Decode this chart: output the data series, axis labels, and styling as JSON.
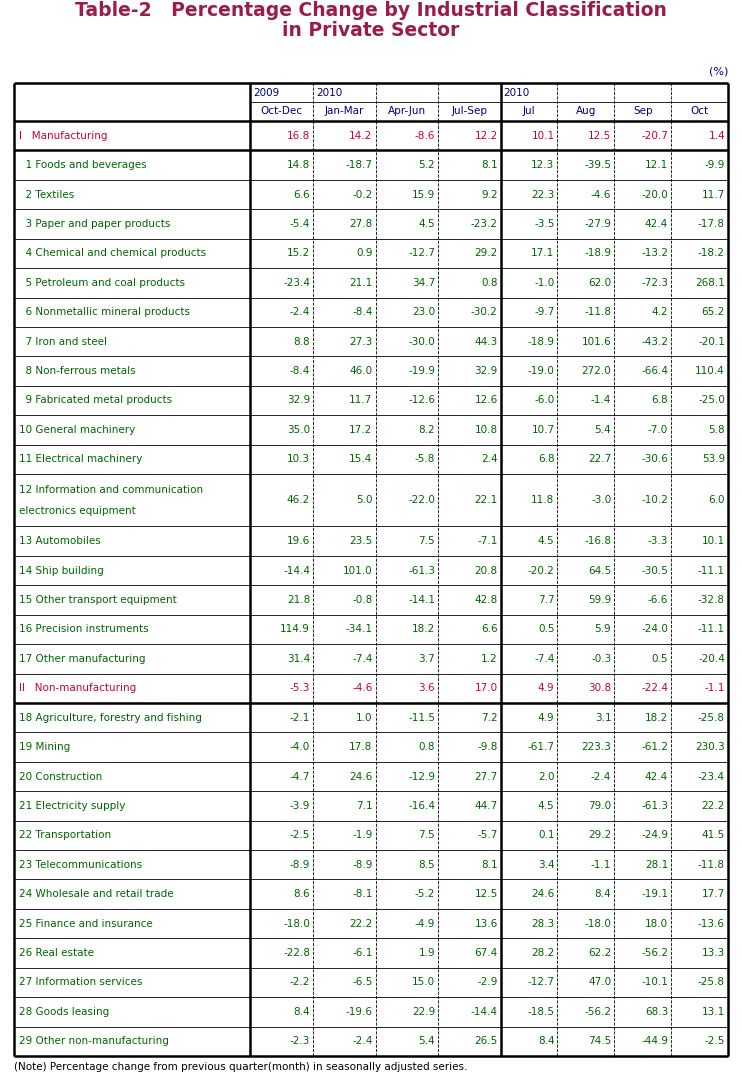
{
  "title_line1": "Table-2   Percentage Change by Industrial Classification",
  "title_line2": "in Private Sector",
  "title_color": "#9B1B4A",
  "note": "(Note) Percentage change from previous quarter(month) in seasonally adjusted series.",
  "percent_label": "(%)",
  "rows": [
    {
      "label": "I   Manufacturing",
      "values": [
        16.8,
        14.2,
        -8.6,
        12.2,
        10.1,
        12.5,
        -20.7,
        1.4
      ],
      "is_header": true,
      "label_color": "#CC0033",
      "value_color": "#CC0033"
    },
    {
      "label": "  1 Foods and beverages",
      "values": [
        14.8,
        -18.7,
        5.2,
        8.1,
        12.3,
        -39.5,
        12.1,
        -9.9
      ],
      "is_header": false,
      "label_color": "#006600",
      "value_color": "#006600"
    },
    {
      "label": "  2 Textiles",
      "values": [
        6.6,
        -0.2,
        15.9,
        9.2,
        22.3,
        -4.6,
        -20.0,
        11.7
      ],
      "is_header": false,
      "label_color": "#006600",
      "value_color": "#006600"
    },
    {
      "label": "  3 Paper and paper products",
      "values": [
        -5.4,
        27.8,
        4.5,
        -23.2,
        -3.5,
        -27.9,
        42.4,
        -17.8
      ],
      "is_header": false,
      "label_color": "#006600",
      "value_color": "#006600"
    },
    {
      "label": "  4 Chemical and chemical products",
      "values": [
        15.2,
        0.9,
        -12.7,
        29.2,
        17.1,
        -18.9,
        -13.2,
        -18.2
      ],
      "is_header": false,
      "label_color": "#006600",
      "value_color": "#006600"
    },
    {
      "label": "  5 Petroleum and coal products",
      "values": [
        -23.4,
        21.1,
        34.7,
        0.8,
        -1.0,
        62.0,
        -72.3,
        268.1
      ],
      "is_header": false,
      "label_color": "#006600",
      "value_color": "#006600"
    },
    {
      "label": "  6 Nonmetallic mineral products",
      "values": [
        -2.4,
        -8.4,
        23.0,
        -30.2,
        -9.7,
        -11.8,
        4.2,
        65.2
      ],
      "is_header": false,
      "label_color": "#006600",
      "value_color": "#006600"
    },
    {
      "label": "  7 Iron and steel",
      "values": [
        8.8,
        27.3,
        -30.0,
        44.3,
        -18.9,
        101.6,
        -43.2,
        -20.1
      ],
      "is_header": false,
      "label_color": "#006600",
      "value_color": "#006600"
    },
    {
      "label": "  8 Non-ferrous metals",
      "values": [
        -8.4,
        46.0,
        -19.9,
        32.9,
        -19.0,
        272.0,
        -66.4,
        110.4
      ],
      "is_header": false,
      "label_color": "#006600",
      "value_color": "#006600"
    },
    {
      "label": "  9 Fabricated metal products",
      "values": [
        32.9,
        11.7,
        -12.6,
        12.6,
        -6.0,
        -1.4,
        6.8,
        -25.0
      ],
      "is_header": false,
      "label_color": "#006600",
      "value_color": "#006600"
    },
    {
      "label": "10 General machinery",
      "values": [
        35.0,
        17.2,
        8.2,
        10.8,
        10.7,
        5.4,
        -7.0,
        5.8
      ],
      "is_header": false,
      "label_color": "#006600",
      "value_color": "#006600"
    },
    {
      "label": "11 Electrical machinery",
      "values": [
        10.3,
        15.4,
        -5.8,
        2.4,
        6.8,
        22.7,
        -30.6,
        53.9
      ],
      "is_header": false,
      "label_color": "#006600",
      "value_color": "#006600"
    },
    {
      "label": "12 Information and communication\n    electronics equipment",
      "values": [
        46.2,
        5.0,
        -22.0,
        22.1,
        11.8,
        -3.0,
        -10.2,
        6.0
      ],
      "is_header": false,
      "label_color": "#006600",
      "value_color": "#006600"
    },
    {
      "label": "13 Automobiles",
      "values": [
        19.6,
        23.5,
        7.5,
        -7.1,
        4.5,
        -16.8,
        -3.3,
        10.1
      ],
      "is_header": false,
      "label_color": "#006600",
      "value_color": "#006600"
    },
    {
      "label": "14 Ship building",
      "values": [
        -14.4,
        101.0,
        -61.3,
        20.8,
        -20.2,
        64.5,
        -30.5,
        -11.1
      ],
      "is_header": false,
      "label_color": "#006600",
      "value_color": "#006600"
    },
    {
      "label": "15 Other transport equipment",
      "values": [
        21.8,
        -0.8,
        -14.1,
        42.8,
        7.7,
        59.9,
        -6.6,
        -32.8
      ],
      "is_header": false,
      "label_color": "#006600",
      "value_color": "#006600"
    },
    {
      "label": "16 Precision instruments",
      "values": [
        114.9,
        -34.1,
        18.2,
        6.6,
        0.5,
        5.9,
        -24.0,
        -11.1
      ],
      "is_header": false,
      "label_color": "#006600",
      "value_color": "#006600"
    },
    {
      "label": "17 Other manufacturing",
      "values": [
        31.4,
        -7.4,
        3.7,
        1.2,
        -7.4,
        -0.3,
        0.5,
        -20.4
      ],
      "is_header": false,
      "label_color": "#006600",
      "value_color": "#006600"
    },
    {
      "label": "II   Non-manufacturing",
      "values": [
        -5.3,
        -4.6,
        3.6,
        17.0,
        4.9,
        30.8,
        -22.4,
        -1.1
      ],
      "is_header": true,
      "label_color": "#CC0033",
      "value_color": "#CC0033"
    },
    {
      "label": "18 Agriculture, forestry and fishing",
      "values": [
        -2.1,
        1.0,
        -11.5,
        7.2,
        4.9,
        3.1,
        18.2,
        -25.8
      ],
      "is_header": false,
      "label_color": "#006600",
      "value_color": "#006600"
    },
    {
      "label": "19 Mining",
      "values": [
        -4.0,
        17.8,
        0.8,
        -9.8,
        -61.7,
        223.3,
        -61.2,
        230.3
      ],
      "is_header": false,
      "label_color": "#006600",
      "value_color": "#006600"
    },
    {
      "label": "20 Construction",
      "values": [
        -4.7,
        24.6,
        -12.9,
        27.7,
        2.0,
        -2.4,
        42.4,
        -23.4
      ],
      "is_header": false,
      "label_color": "#006600",
      "value_color": "#006600"
    },
    {
      "label": "21 Electricity supply",
      "values": [
        -3.9,
        7.1,
        -16.4,
        44.7,
        4.5,
        79.0,
        -61.3,
        22.2
      ],
      "is_header": false,
      "label_color": "#006600",
      "value_color": "#006600"
    },
    {
      "label": "22 Transportation",
      "values": [
        -2.5,
        -1.9,
        7.5,
        -5.7,
        0.1,
        29.2,
        -24.9,
        41.5
      ],
      "is_header": false,
      "label_color": "#006600",
      "value_color": "#006600"
    },
    {
      "label": "23 Telecommunications",
      "values": [
        -8.9,
        -8.9,
        8.5,
        8.1,
        3.4,
        -1.1,
        28.1,
        -11.8
      ],
      "is_header": false,
      "label_color": "#006600",
      "value_color": "#006600"
    },
    {
      "label": "24 Wholesale and retail trade",
      "values": [
        8.6,
        -8.1,
        -5.2,
        12.5,
        24.6,
        8.4,
        -19.1,
        17.7
      ],
      "is_header": false,
      "label_color": "#006600",
      "value_color": "#006600"
    },
    {
      "label": "25 Finance and insurance",
      "values": [
        -18.0,
        22.2,
        -4.9,
        13.6,
        28.3,
        -18.0,
        18.0,
        -13.6
      ],
      "is_header": false,
      "label_color": "#006600",
      "value_color": "#006600"
    },
    {
      "label": "26 Real estate",
      "values": [
        -22.8,
        -6.1,
        1.9,
        67.4,
        28.2,
        62.2,
        -56.2,
        13.3
      ],
      "is_header": false,
      "label_color": "#006600",
      "value_color": "#006600"
    },
    {
      "label": "27 Information services",
      "values": [
        -2.2,
        -6.5,
        15.0,
        -2.9,
        -12.7,
        47.0,
        -10.1,
        -25.8
      ],
      "is_header": false,
      "label_color": "#006600",
      "value_color": "#006600"
    },
    {
      "label": "28 Goods leasing",
      "values": [
        8.4,
        -19.6,
        22.9,
        -14.4,
        -18.5,
        -56.2,
        68.3,
        13.1
      ],
      "is_header": false,
      "label_color": "#006600",
      "value_color": "#006600"
    },
    {
      "label": "29 Other non-manufacturing",
      "values": [
        -2.3,
        -2.4,
        5.4,
        26.5,
        8.4,
        74.5,
        -44.9,
        -2.5
      ],
      "is_header": false,
      "label_color": "#006600",
      "value_color": "#006600"
    }
  ],
  "header_col_color": "#000080",
  "border_color": "#000000",
  "bg_color": "#ffffff"
}
